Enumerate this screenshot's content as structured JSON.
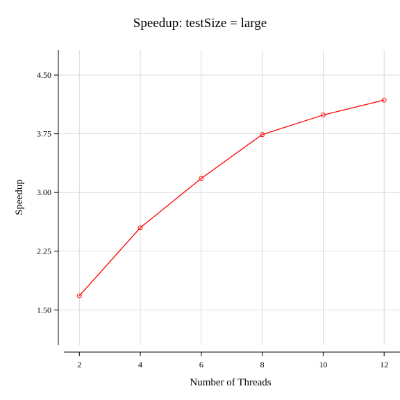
{
  "chart_data": {
    "type": "line",
    "title": "Speedup: testSize = large",
    "xlabel": "Number of Threads",
    "ylabel": "Speedup",
    "x": [
      2,
      4,
      6,
      8,
      10,
      12
    ],
    "series": [
      {
        "values": [
          1.68,
          2.55,
          3.18,
          3.74,
          3.99,
          4.18
        ],
        "color": "#ff0000"
      }
    ],
    "xticks": [
      2,
      4,
      6,
      8,
      10,
      12
    ],
    "yticks": [
      1.5,
      2.25,
      3.0,
      3.75,
      4.5
    ],
    "xtick_labels": [
      "2",
      "4",
      "6",
      "8",
      "10",
      "12"
    ],
    "ytick_labels": [
      "1.50",
      "2.25",
      "3.00",
      "3.75",
      "4.50"
    ],
    "xlim": [
      1.31,
      12.52
    ],
    "ylim": [
      1.05,
      4.82
    ],
    "grid": true,
    "marker": "open-circle"
  }
}
